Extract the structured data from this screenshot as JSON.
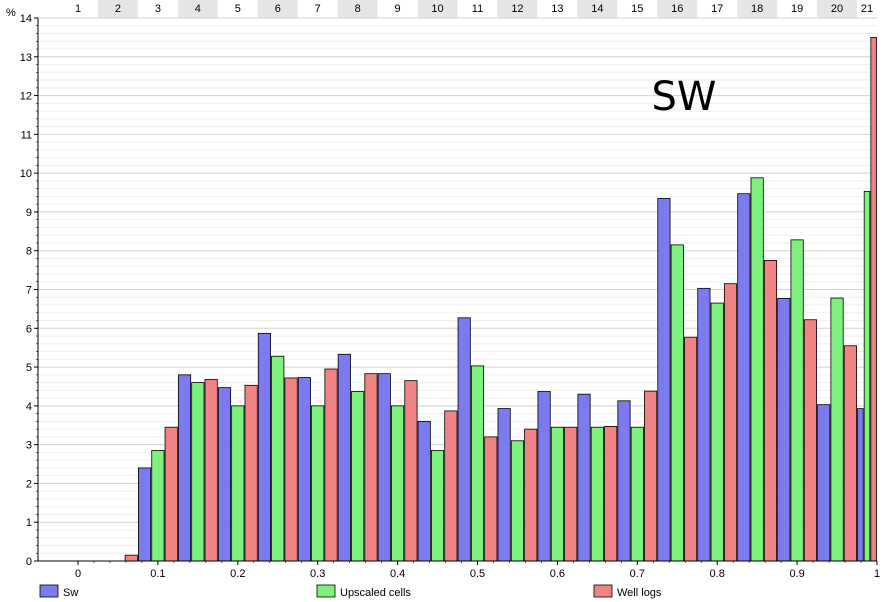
{
  "chart_data": {
    "type": "bar",
    "title": "SW",
    "ylabel": "%",
    "xlim": [
      0,
      1
    ],
    "ylim": [
      0,
      14
    ],
    "x_ticks": [
      "0",
      "0.1",
      "0.2",
      "0.3",
      "0.4",
      "0.5",
      "0.6",
      "0.7",
      "0.8",
      "0.9",
      "1"
    ],
    "y_ticks": [
      "0",
      "1",
      "2",
      "3",
      "4",
      "5",
      "6",
      "7",
      "8",
      "9",
      "10",
      "11",
      "12",
      "13",
      "14"
    ],
    "bin_labels": [
      "1",
      "2",
      "3",
      "4",
      "5",
      "6",
      "7",
      "8",
      "9",
      "10",
      "11",
      "12",
      "13",
      "14",
      "15",
      "16",
      "17",
      "18",
      "19",
      "20",
      "21"
    ],
    "bin_edges": [
      -0.025,
      0.025,
      0.075,
      0.125,
      0.175,
      0.225,
      0.275,
      0.325,
      0.375,
      0.425,
      0.475,
      0.525,
      0.575,
      0.625,
      0.675,
      0.725,
      0.775,
      0.825,
      0.875,
      0.925,
      0.975,
      1.0
    ],
    "series": [
      {
        "name": "Sw",
        "color": "#7b7bef",
        "values": [
          0,
          0,
          2.4,
          4.8,
          4.47,
          5.87,
          4.73,
          5.33,
          4.83,
          3.6,
          6.27,
          3.93,
          4.37,
          4.3,
          4.13,
          9.35,
          7.03,
          9.47,
          6.77,
          4.03,
          3.93
        ]
      },
      {
        "name": "Upscaled cells",
        "color": "#7ef07e",
        "values": [
          0,
          0,
          2.85,
          4.6,
          4.0,
          5.28,
          4.0,
          4.37,
          4.0,
          2.85,
          5.03,
          3.1,
          3.45,
          3.45,
          3.45,
          8.15,
          6.65,
          9.88,
          8.28,
          6.78,
          9.53
        ]
      },
      {
        "name": "Well logs",
        "color": "#f08383",
        "values": [
          0,
          0.15,
          3.45,
          4.68,
          4.53,
          4.72,
          4.95,
          4.83,
          4.65,
          3.87,
          3.2,
          3.4,
          3.45,
          3.47,
          4.38,
          5.77,
          7.15,
          7.75,
          6.22,
          5.55,
          13.5
        ]
      }
    ],
    "legend_position": "bottom",
    "grid": true
  }
}
